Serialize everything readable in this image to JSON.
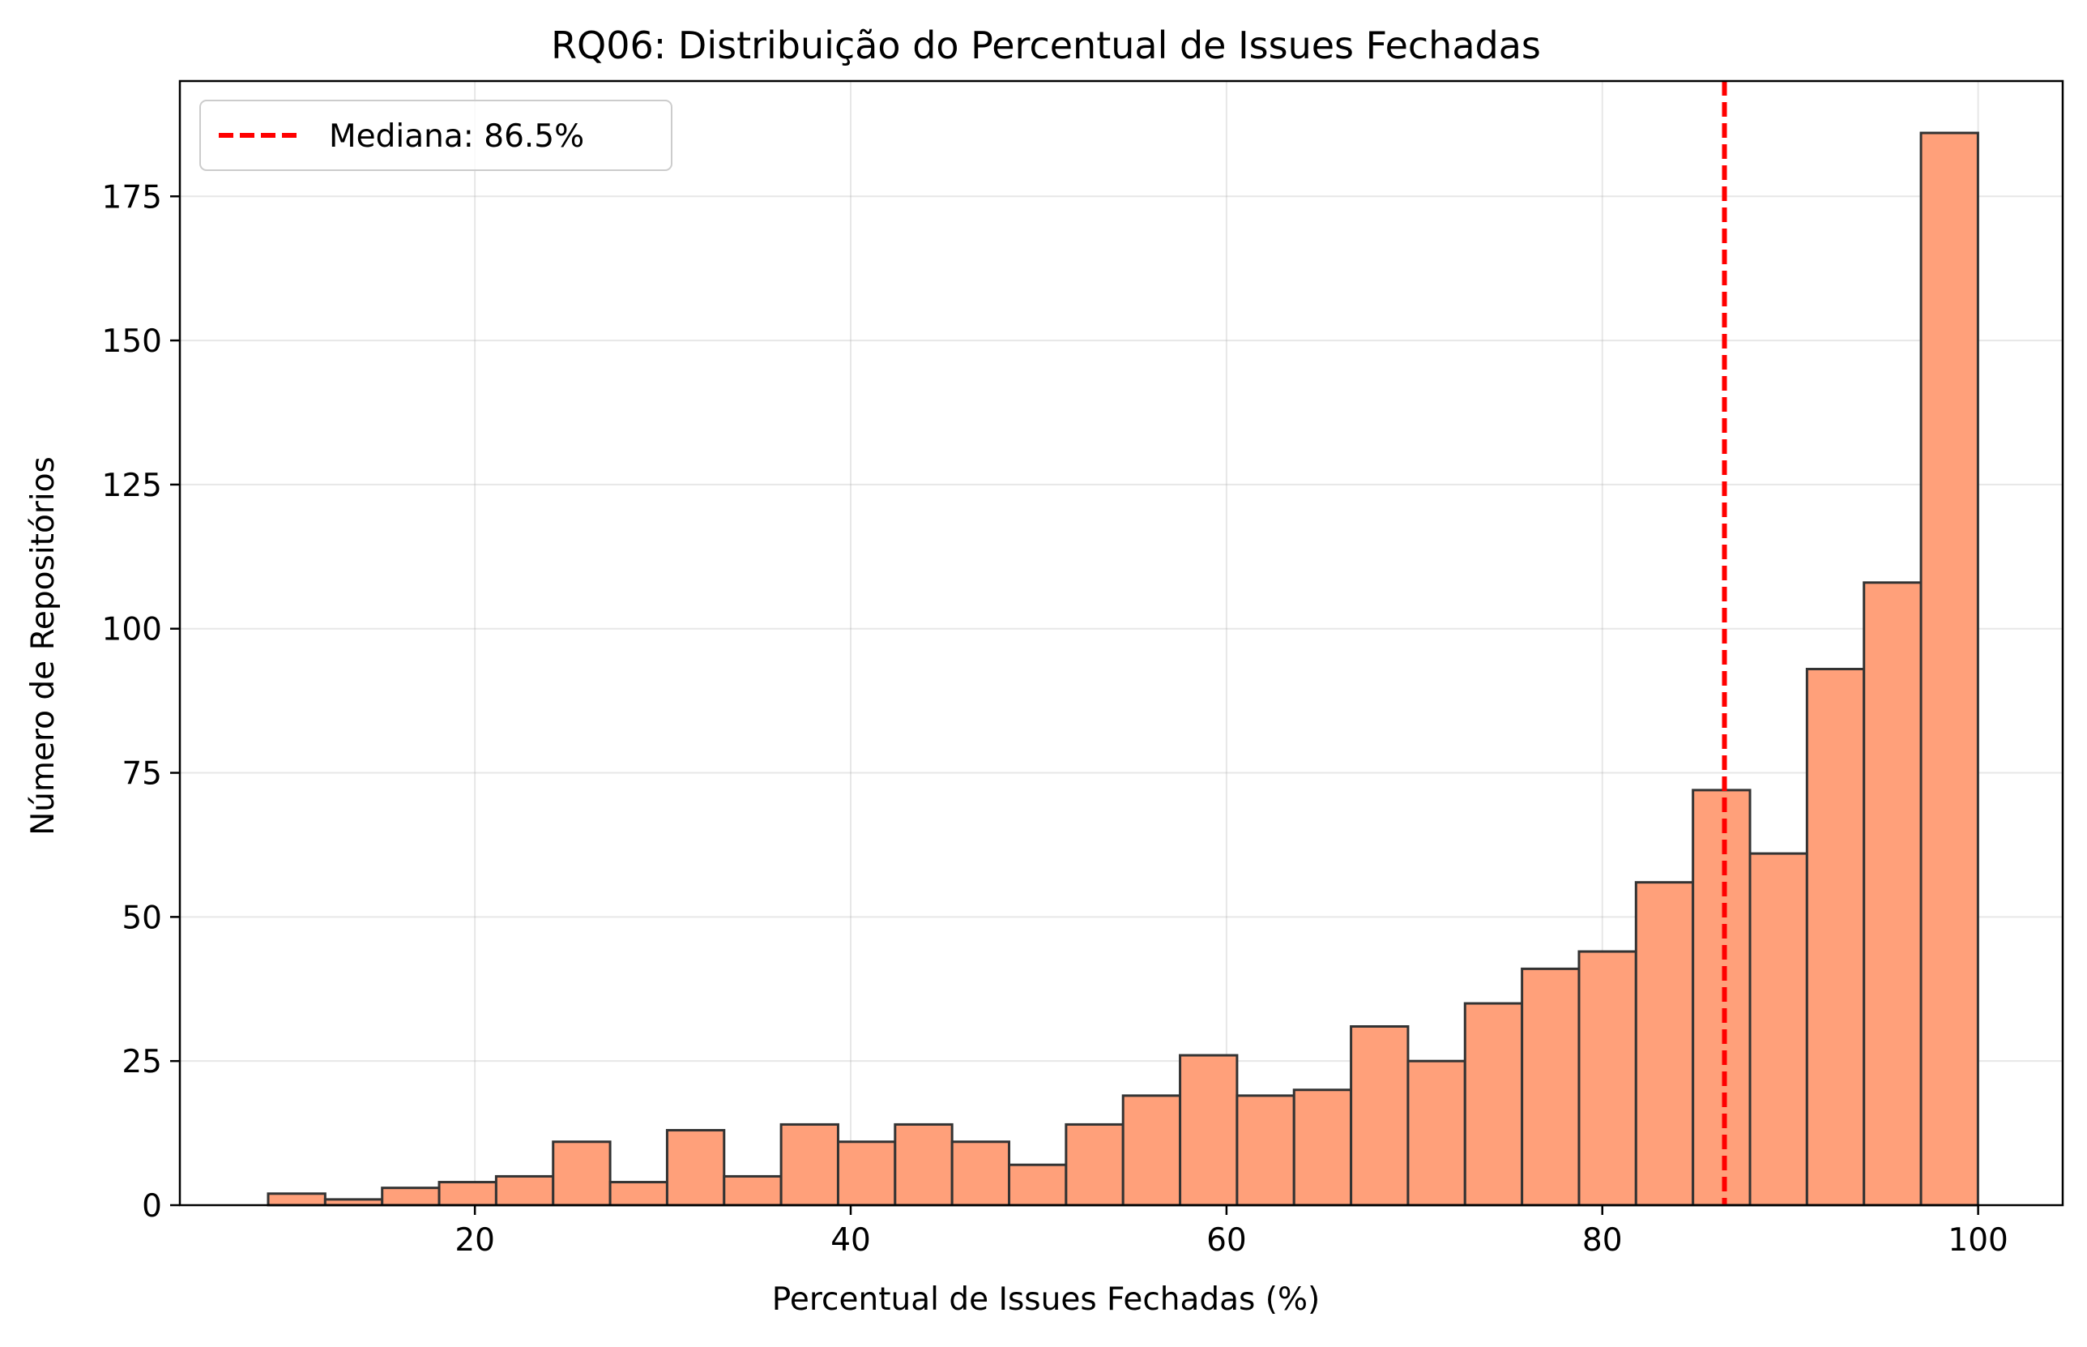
{
  "chart_data": {
    "type": "bar",
    "title": "RQ06: Distribuição do Percentual de Issues Fechadas",
    "xlabel": "Percentual de Issues Fechadas (%)",
    "ylabel": "Número de Repositórios",
    "xlim": [
      4.3,
      104.5
    ],
    "ylim": [
      0,
      195
    ],
    "xticks": [
      20,
      40,
      60,
      80,
      100
    ],
    "yticks": [
      0,
      25,
      50,
      75,
      100,
      125,
      150,
      175
    ],
    "xtick_labels": [
      "20",
      "40",
      "60",
      "80",
      "100"
    ],
    "ytick_labels": [
      "0",
      "25",
      "50",
      "75",
      "100",
      "125",
      "150",
      "175"
    ],
    "bin_start": 9.0,
    "bin_width": 3.033,
    "values": [
      2,
      1,
      3,
      4,
      5,
      11,
      4,
      13,
      5,
      14,
      11,
      14,
      11,
      7,
      14,
      19,
      26,
      19,
      20,
      31,
      25,
      35,
      41,
      44,
      56,
      72,
      61,
      93,
      108,
      186
    ],
    "bar_color": "#ffa07a",
    "bar_edge_color": "#333333",
    "median": {
      "value": 86.5,
      "color": "#ff0000",
      "label": "Mediana: 86.5%"
    },
    "grid": true,
    "legend_position": "top-left"
  }
}
